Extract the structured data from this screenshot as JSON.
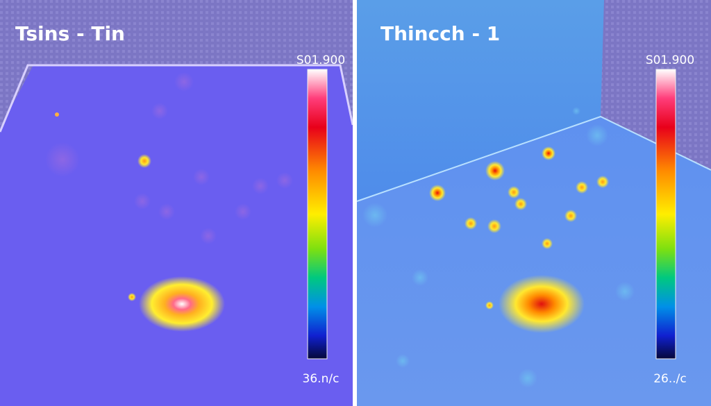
{
  "panels": [
    {
      "title": "Tsins - Tin",
      "scale_max": "S01.900",
      "scale_min": "36.n/c"
    },
    {
      "title": "Thincch - 1",
      "scale_max": "S01.900",
      "scale_min": "26../c"
    }
  ]
}
